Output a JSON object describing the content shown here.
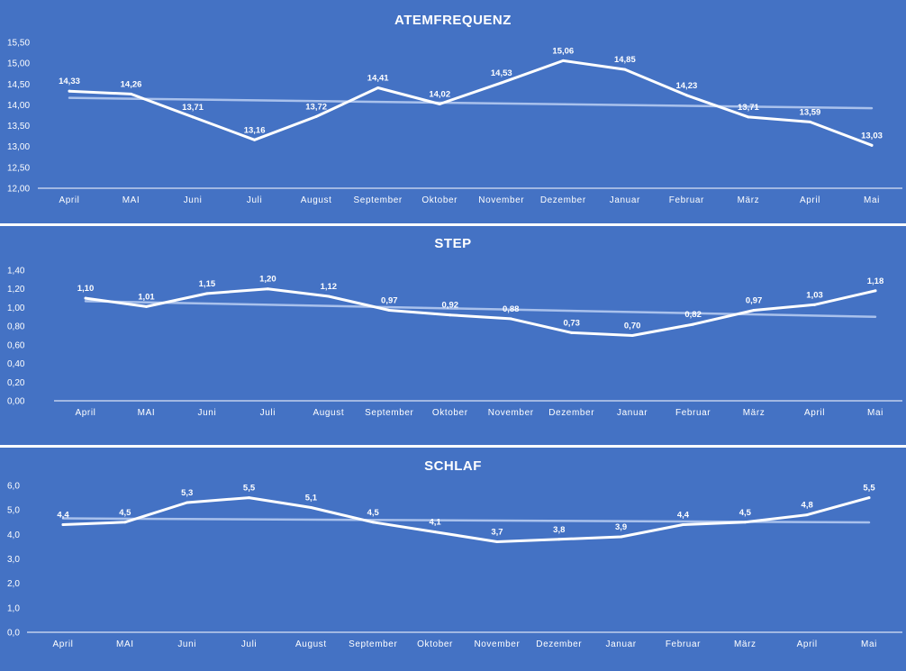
{
  "colors": {
    "background": "#4472c4",
    "series_line": "#ffffff",
    "trendline": "#a9c1ec",
    "axis": "#ffffff",
    "text": "#ffffff"
  },
  "chart_data": [
    {
      "type": "line",
      "title": "ATEMFREQUENZ",
      "categories": [
        "April",
        "MAI",
        "Juni",
        "Juli",
        "August",
        "September",
        "Oktober",
        "November",
        "Dezember",
        "Januar",
        "Februar",
        "März",
        "April",
        "Mai"
      ],
      "values": [
        14.33,
        14.26,
        13.71,
        13.16,
        13.72,
        14.41,
        14.02,
        14.53,
        15.06,
        14.85,
        14.23,
        13.71,
        13.59,
        13.03
      ],
      "data_labels": [
        "14,33",
        "14,26",
        "13,71",
        "13,16",
        "13,72",
        "14,41",
        "14,02",
        "14,53",
        "15,06",
        "14,85",
        "14,23",
        "13,71",
        "13,59",
        "13,03"
      ],
      "ylim": [
        12.0,
        15.5
      ],
      "yticks": [
        12.0,
        12.5,
        13.0,
        13.5,
        14.0,
        14.5,
        15.0,
        15.5
      ],
      "ytick_labels": [
        "12,00",
        "12,50",
        "13,00",
        "13,50",
        "14,00",
        "14,50",
        "15,00",
        "15,50"
      ],
      "trendline": "linear",
      "grid": false,
      "legend": "none"
    },
    {
      "type": "line",
      "title": "STEP",
      "categories": [
        "April",
        "MAI",
        "Juni",
        "Juli",
        "August",
        "September",
        "Oktober",
        "November",
        "Dezember",
        "Januar",
        "Februar",
        "März",
        "April",
        "Mai"
      ],
      "values": [
        1.1,
        1.01,
        1.15,
        1.2,
        1.12,
        0.97,
        0.92,
        0.88,
        0.73,
        0.7,
        0.82,
        0.97,
        1.03,
        1.18
      ],
      "data_labels": [
        "1,10",
        "1,01",
        "1,15",
        "1,20",
        "1,12",
        "0,97",
        "0,92",
        "0,88",
        "0,73",
        "0,70",
        "0,82",
        "0,97",
        "1,03",
        "1,18"
      ],
      "ylim": [
        0.0,
        1.4
      ],
      "yticks": [
        0.0,
        0.2,
        0.4,
        0.6,
        0.8,
        1.0,
        1.2,
        1.4
      ],
      "ytick_labels": [
        "0,00",
        "0,20",
        "0,40",
        "0,60",
        "0,80",
        "1,00",
        "1,20",
        "1,40"
      ],
      "trendline": "linear",
      "grid": false,
      "legend": "none"
    },
    {
      "type": "line",
      "title": "SCHLAF",
      "categories": [
        "April",
        "MAI",
        "Juni",
        "Juli",
        "August",
        "September",
        "Oktober",
        "November",
        "Dezember",
        "Januar",
        "Februar",
        "März",
        "April",
        "Mai"
      ],
      "values": [
        4.4,
        4.5,
        5.3,
        5.5,
        5.1,
        4.5,
        4.1,
        3.7,
        3.8,
        3.9,
        4.4,
        4.5,
        4.8,
        5.5
      ],
      "data_labels": [
        "4,4",
        "4,5",
        "5,3",
        "5,5",
        "5,1",
        "4,5",
        "4,1",
        "3,7",
        "3,8",
        "3,9",
        "4,4",
        "4,5",
        "4,8",
        "5,5"
      ],
      "ylim": [
        0.0,
        6.0
      ],
      "yticks": [
        0.0,
        1.0,
        2.0,
        3.0,
        4.0,
        5.0,
        6.0
      ],
      "ytick_labels": [
        "0,0",
        "1,0",
        "2,0",
        "3,0",
        "4,0",
        "5,0",
        "6,0"
      ],
      "trendline": "linear",
      "grid": false,
      "legend": "none"
    }
  ]
}
